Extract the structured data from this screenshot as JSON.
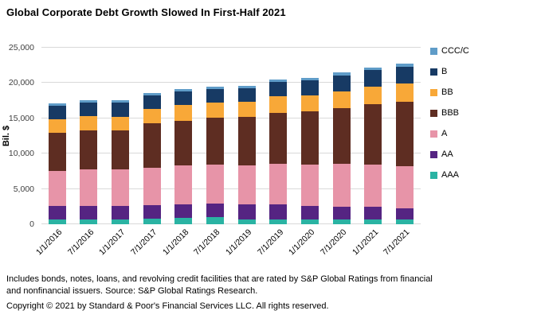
{
  "chart_data": {
    "type": "bar",
    "stacked": true,
    "title": "Global Corporate Debt Growth Slowed In First-Half 2021",
    "xlabel": "",
    "ylabel": "Bil. $",
    "ylim": [
      0,
      25000
    ],
    "ytick_step": 5000,
    "grid": true,
    "legend_position": "right",
    "categories": [
      "1/1/2016",
      "7/1/2016",
      "1/1/2017",
      "7/1/2017",
      "1/1/2018",
      "7/1/2018",
      "1/1/2019",
      "7/1/2019",
      "1/1/2020",
      "7/1/2020",
      "1/1/2021",
      "7/1/2021"
    ],
    "series": [
      {
        "name": "AAA",
        "color": "#2ab3a3",
        "values": [
          700,
          700,
          700,
          750,
          900,
          1000,
          700,
          700,
          700,
          700,
          700,
          700
        ]
      },
      {
        "name": "AA",
        "color": "#552482",
        "values": [
          1900,
          1850,
          1850,
          2000,
          1900,
          1900,
          2100,
          2100,
          1900,
          1800,
          1800,
          1600
        ]
      },
      {
        "name": "A",
        "color": "#e794a8",
        "values": [
          5000,
          5200,
          5200,
          5300,
          5500,
          5500,
          5500,
          5800,
          5900,
          6100,
          5900,
          5900
        ]
      },
      {
        "name": "BBB",
        "color": "#5e2d22",
        "values": [
          5300,
          5500,
          5500,
          6200,
          6400,
          6700,
          6900,
          7200,
          7500,
          7800,
          8600,
          9100
        ]
      },
      {
        "name": "BB",
        "color": "#f8a838",
        "values": [
          2000,
          2100,
          2000,
          2100,
          2200,
          2100,
          2100,
          2300,
          2200,
          2400,
          2500,
          2600
        ]
      },
      {
        "name": "B",
        "color": "#173a64",
        "values": [
          1900,
          1900,
          2000,
          1900,
          1900,
          2000,
          2000,
          2100,
          2200,
          2300,
          2300,
          2400
        ]
      },
      {
        "name": "CCC/C",
        "color": "#5f9cc8",
        "values": [
          300,
          300,
          300,
          300,
          300,
          300,
          300,
          300,
          300,
          400,
          400,
          400
        ]
      }
    ]
  },
  "footnotes": [
    "Includes bonds, notes, loans, and revolving credit facilities that are rated by S&P Global Ratings from financial",
    "and nonfinancial issuers. Source: S&P Global Ratings Research.",
    "Copyright © 2021 by Standard & Poor's Financial Services LLC. All rights reserved."
  ]
}
